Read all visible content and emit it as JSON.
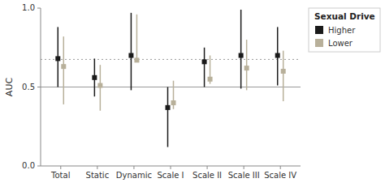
{
  "chart_data": {
    "type": "interval",
    "categories": [
      "Total",
      "Static",
      "Dynamic",
      "Scale I",
      "Scale II",
      "Scale III",
      "Scale IV"
    ],
    "series": [
      {
        "name": "Higher",
        "color": "#1a1a1a",
        "marker": "square",
        "values": [
          0.68,
          0.56,
          0.7,
          0.37,
          0.66,
          0.7,
          0.7
        ],
        "lower": [
          0.5,
          0.44,
          0.48,
          0.12,
          0.5,
          0.49,
          0.51
        ],
        "upper": [
          0.88,
          0.68,
          0.97,
          0.5,
          0.75,
          0.99,
          0.88
        ]
      },
      {
        "name": "Lower",
        "color": "#b8b09a",
        "marker": "square",
        "values": [
          0.63,
          0.51,
          0.67,
          0.4,
          0.55,
          0.62,
          0.6
        ],
        "lower": [
          0.39,
          0.35,
          0.66,
          0.36,
          0.52,
          0.48,
          0.41
        ],
        "upper": [
          0.82,
          0.64,
          0.96,
          0.54,
          0.7,
          0.8,
          0.73
        ]
      }
    ],
    "reference_lines": [
      {
        "value": 0.5,
        "line_style": "solid"
      },
      {
        "value": 0.675,
        "line_style": "dotted"
      }
    ],
    "ylabel": "AUC",
    "ylim": [
      0.0,
      1.0
    ],
    "yticks": [
      {
        "value": 0.0,
        "label": "0.0"
      },
      0.5,
      {
        "value": 1.0,
        "label": "1.0"
      }
    ],
    "legend_title": "Sexual Drive",
    "legend": "right",
    "grid": false
  }
}
